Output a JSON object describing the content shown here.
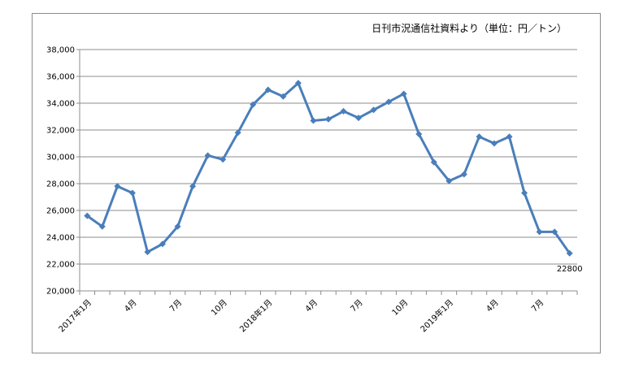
{
  "source_note": "日刊市況通信社資料より（単位：円／トン）",
  "chart_data": {
    "type": "line",
    "title": "",
    "xlabel": "",
    "ylabel": "",
    "ylim": [
      20000,
      38000
    ],
    "yticks": [
      "20,000",
      "22,000",
      "24,000",
      "26,000",
      "28,000",
      "30,000",
      "32,000",
      "34,000",
      "36,000",
      "38,000"
    ],
    "ytick_values": [
      20000,
      22000,
      24000,
      26000,
      28000,
      30000,
      32000,
      34000,
      36000,
      38000
    ],
    "grid": true,
    "legend": "none",
    "line_color": "#4a7ebb",
    "categories": [
      "2017-01",
      "2017-02",
      "2017-03",
      "2017-04",
      "2017-05",
      "2017-06",
      "2017-07",
      "2017-08",
      "2017-09",
      "2017-10",
      "2017-11",
      "2017-12",
      "2018-01",
      "2018-02",
      "2018-03",
      "2018-04",
      "2018-05",
      "2018-06",
      "2018-07",
      "2018-08",
      "2018-09",
      "2018-10",
      "2018-11",
      "2018-12",
      "2019-01",
      "2019-02",
      "2019-03",
      "2019-04",
      "2019-05",
      "2019-06",
      "2019-07",
      "2019-08",
      "2019-09"
    ],
    "x_tick_labels": [
      {
        "index": 0,
        "text": "2017年1月"
      },
      {
        "index": 3,
        "text": "4月"
      },
      {
        "index": 6,
        "text": "7月"
      },
      {
        "index": 9,
        "text": "10月"
      },
      {
        "index": 12,
        "text": "2018年1月"
      },
      {
        "index": 15,
        "text": "4月"
      },
      {
        "index": 18,
        "text": "7月"
      },
      {
        "index": 21,
        "text": "10月"
      },
      {
        "index": 24,
        "text": "2019年1月"
      },
      {
        "index": 27,
        "text": "4月"
      },
      {
        "index": 30,
        "text": "7月"
      }
    ],
    "values": [
      25600,
      24800,
      27800,
      27300,
      22900,
      23500,
      24800,
      27800,
      30100,
      29800,
      31800,
      33900,
      35000,
      34500,
      35500,
      32700,
      32800,
      33400,
      32900,
      33500,
      34100,
      34700,
      31700,
      29600,
      28200,
      28700,
      31500,
      31000,
      31500,
      27300,
      24400,
      24400,
      22800
    ],
    "annotations": [
      {
        "index": 32,
        "text": "22800"
      }
    ]
  }
}
